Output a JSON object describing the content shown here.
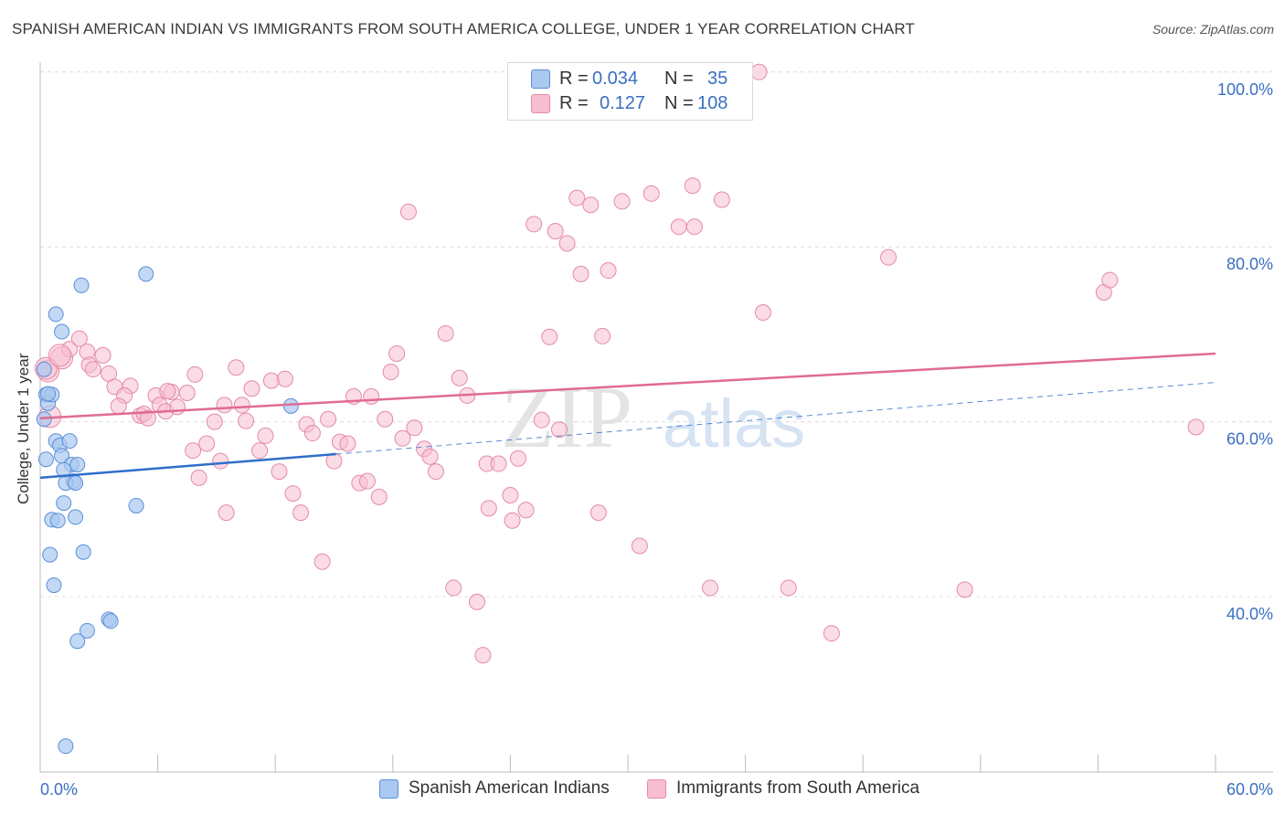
{
  "title": "SPANISH AMERICAN INDIAN VS IMMIGRANTS FROM SOUTH AMERICA COLLEGE, UNDER 1 YEAR CORRELATION CHART",
  "source": "Source: ZipAtlas.com",
  "watermark": {
    "zip": "ZIP",
    "atlas": "atlas"
  },
  "legend_top": {
    "rows": [
      {
        "r_label": "R =",
        "r_value": "0.034",
        "n_label": "N =",
        "n_value": "35"
      },
      {
        "r_label": "R =",
        "r_value": "0.127",
        "n_label": "N =",
        "n_value": "108"
      }
    ]
  },
  "legend_bottom": {
    "items": [
      {
        "label": "Spanish American Indians"
      },
      {
        "label": "Immigrants from South America"
      }
    ]
  },
  "chart_data": {
    "type": "scatter",
    "title": "SPANISH AMERICAN INDIAN VS IMMIGRANTS FROM SOUTH AMERICA COLLEGE, UNDER 1 YEAR CORRELATION CHART",
    "xlabel": "",
    "ylabel": "College, Under 1 year",
    "x_tick_labels": [
      "0.0%",
      "60.0%"
    ],
    "y_tick_labels": [
      "40.0%",
      "60.0%",
      "80.0%",
      "100.0%"
    ],
    "y_ticks": [
      40,
      60,
      80,
      100
    ],
    "xlim": [
      0,
      60
    ],
    "ylim": [
      20,
      102
    ],
    "colors": {
      "blue_fill": "#aac8f0",
      "blue_edge": "#5a8fd8",
      "blue_line": "#2f6ecb",
      "pink_fill": "#f7bed0",
      "pink_edge": "#e48aa8",
      "pink_line": "#e06b92",
      "tick_text": "#3a6fc2",
      "grid": "#dcdcdc"
    },
    "series": [
      {
        "name": "Spanish American Indians",
        "color": "#aac8f0",
        "trend": {
          "x": [
            0,
            15.1
          ],
          "y": [
            53.6,
            56.3
          ],
          "dashed_to": {
            "x": [
              15.1,
              60
            ],
            "y": [
              56.3,
              64.5
            ]
          }
        },
        "points": [
          [
            0.2,
            66.0
          ],
          [
            0.3,
            63.1
          ],
          [
            0.4,
            62.1
          ],
          [
            0.2,
            60.3
          ],
          [
            0.6,
            63.1
          ],
          [
            0.8,
            57.8
          ],
          [
            1.0,
            57.3
          ],
          [
            1.5,
            57.8
          ],
          [
            1.1,
            56.1
          ],
          [
            0.3,
            55.7
          ],
          [
            1.6,
            55.1
          ],
          [
            1.9,
            55.1
          ],
          [
            1.2,
            54.5
          ],
          [
            1.7,
            53.2
          ],
          [
            1.3,
            53.0
          ],
          [
            1.8,
            53.0
          ],
          [
            1.2,
            50.7
          ],
          [
            0.6,
            48.8
          ],
          [
            0.9,
            48.7
          ],
          [
            1.8,
            49.1
          ],
          [
            0.5,
            44.8
          ],
          [
            2.2,
            45.1
          ],
          [
            0.7,
            41.3
          ],
          [
            3.5,
            37.4
          ],
          [
            3.6,
            37.2
          ],
          [
            2.4,
            36.1
          ],
          [
            1.9,
            34.9
          ],
          [
            1.3,
            22.9
          ],
          [
            2.1,
            75.6
          ],
          [
            5.4,
            76.9
          ],
          [
            0.8,
            72.3
          ],
          [
            1.1,
            70.3
          ],
          [
            12.8,
            61.8
          ],
          [
            4.9,
            50.4
          ],
          [
            0.4,
            63.2
          ]
        ]
      },
      {
        "name": "Immigrants from South America",
        "color": "#f7bed0",
        "trend": {
          "x": [
            0,
            60
          ],
          "y": [
            60.4,
            67.8
          ]
        },
        "points": [
          [
            0.4,
            65.8
          ],
          [
            0.5,
            60.6
          ],
          [
            1.1,
            67.3
          ],
          [
            1.5,
            68.3
          ],
          [
            2.0,
            69.5
          ],
          [
            2.4,
            68.0
          ],
          [
            3.2,
            67.6
          ],
          [
            2.5,
            66.5
          ],
          [
            2.7,
            66.0
          ],
          [
            3.5,
            65.5
          ],
          [
            3.8,
            64.0
          ],
          [
            4.6,
            64.1
          ],
          [
            4.3,
            63.0
          ],
          [
            4.0,
            61.8
          ],
          [
            5.1,
            60.7
          ],
          [
            5.3,
            60.9
          ],
          [
            5.5,
            60.4
          ],
          [
            5.9,
            63.0
          ],
          [
            6.1,
            61.9
          ],
          [
            6.4,
            61.2
          ],
          [
            6.7,
            63.4
          ],
          [
            7.0,
            61.7
          ],
          [
            7.5,
            63.3
          ],
          [
            7.8,
            56.7
          ],
          [
            7.9,
            65.4
          ],
          [
            8.1,
            53.6
          ],
          [
            8.5,
            57.5
          ],
          [
            8.9,
            60.0
          ],
          [
            9.2,
            55.5
          ],
          [
            9.4,
            61.9
          ],
          [
            9.5,
            49.6
          ],
          [
            10.0,
            66.2
          ],
          [
            10.3,
            61.9
          ],
          [
            10.5,
            60.1
          ],
          [
            10.8,
            63.8
          ],
          [
            11.2,
            56.7
          ],
          [
            11.5,
            58.4
          ],
          [
            11.8,
            64.7
          ],
          [
            12.2,
            54.3
          ],
          [
            12.5,
            64.9
          ],
          [
            12.9,
            51.8
          ],
          [
            13.3,
            49.6
          ],
          [
            13.6,
            59.7
          ],
          [
            13.9,
            58.7
          ],
          [
            14.4,
            44.0
          ],
          [
            14.7,
            60.3
          ],
          [
            15.0,
            55.5
          ],
          [
            15.3,
            57.7
          ],
          [
            15.7,
            57.5
          ],
          [
            16.0,
            62.9
          ],
          [
            16.3,
            53.0
          ],
          [
            16.7,
            53.2
          ],
          [
            16.9,
            62.9
          ],
          [
            17.3,
            51.4
          ],
          [
            17.6,
            60.3
          ],
          [
            17.9,
            65.7
          ],
          [
            18.2,
            67.8
          ],
          [
            18.5,
            58.1
          ],
          [
            18.8,
            84.0
          ],
          [
            19.1,
            59.3
          ],
          [
            19.6,
            56.9
          ],
          [
            19.9,
            56.0
          ],
          [
            20.2,
            54.3
          ],
          [
            20.7,
            70.1
          ],
          [
            21.1,
            41.0
          ],
          [
            21.4,
            65.0
          ],
          [
            21.8,
            63.0
          ],
          [
            22.3,
            39.4
          ],
          [
            22.6,
            33.3
          ],
          [
            22.8,
            55.2
          ],
          [
            22.9,
            50.1
          ],
          [
            23.4,
            55.2
          ],
          [
            24.0,
            51.6
          ],
          [
            24.1,
            48.7
          ],
          [
            24.4,
            55.8
          ],
          [
            24.8,
            49.9
          ],
          [
            25.2,
            82.6
          ],
          [
            25.6,
            60.2
          ],
          [
            26.0,
            69.7
          ],
          [
            26.3,
            81.8
          ],
          [
            26.5,
            59.1
          ],
          [
            26.9,
            80.4
          ],
          [
            27.4,
            85.6
          ],
          [
            27.6,
            76.9
          ],
          [
            28.1,
            84.8
          ],
          [
            28.5,
            49.6
          ],
          [
            28.7,
            69.8
          ],
          [
            29.0,
            77.3
          ],
          [
            29.7,
            85.2
          ],
          [
            30.6,
            45.8
          ],
          [
            31.2,
            86.1
          ],
          [
            32.6,
            82.3
          ],
          [
            33.3,
            87.0
          ],
          [
            33.4,
            82.3
          ],
          [
            34.2,
            41.0
          ],
          [
            34.8,
            85.4
          ],
          [
            36.7,
            100.0
          ],
          [
            36.9,
            72.5
          ],
          [
            38.2,
            41.0
          ],
          [
            40.4,
            35.8
          ],
          [
            43.3,
            78.8
          ],
          [
            47.2,
            40.8
          ],
          [
            54.3,
            74.8
          ],
          [
            54.6,
            76.2
          ],
          [
            59.0,
            59.4
          ],
          [
            0.3,
            66.1
          ],
          [
            1.0,
            67.6
          ],
          [
            6.5,
            63.5
          ]
        ]
      }
    ]
  }
}
